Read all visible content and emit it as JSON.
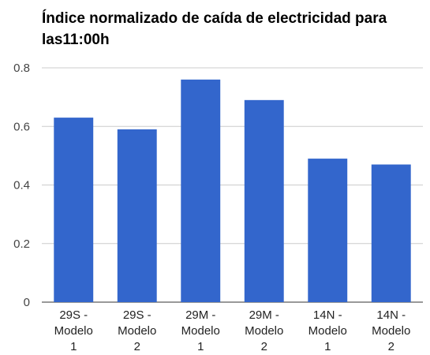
{
  "title": "Índice normalizado de caída de electricidad para las11:00h",
  "chart_data": {
    "type": "bar",
    "title": "Índice normalizado de caída de electricidad para las11:00h",
    "categories": [
      [
        "29S -",
        "Modelo",
        "1"
      ],
      [
        "29S -",
        "Modelo",
        "2"
      ],
      [
        "29M -",
        "Modelo",
        "1"
      ],
      [
        "29M -",
        "Modelo",
        "2"
      ],
      [
        "14N -",
        "Modelo",
        "1"
      ],
      [
        "14N -",
        "Modelo",
        "2"
      ]
    ],
    "values": [
      0.63,
      0.59,
      0.76,
      0.69,
      0.49,
      0.47
    ],
    "ylim": [
      0,
      0.8
    ],
    "yticks": [
      "0",
      "0.2",
      "0.4",
      "0.6",
      "0.8"
    ],
    "xlabel": "",
    "ylabel": "",
    "grid": true,
    "bar_color": "#3366cc",
    "grid_color": "#cccccc"
  }
}
